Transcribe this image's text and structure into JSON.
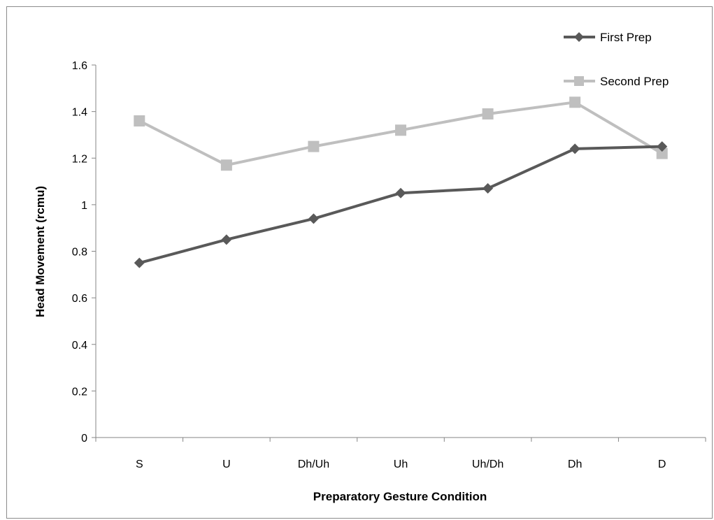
{
  "chart_data": {
    "type": "line",
    "title": "",
    "xlabel": "Preparatory Gesture Condition",
    "ylabel": "Head Movement (rcmu)",
    "categories": [
      "S",
      "U",
      "Dh/Uh",
      "Uh",
      "Uh/Dh",
      "Dh",
      "D"
    ],
    "ylim": [
      0,
      1.6
    ],
    "yticks": [
      "0",
      "0.2",
      "0.4",
      "0.6",
      "0.8",
      "1",
      "1.2",
      "1.4",
      "1.6"
    ],
    "grid": false,
    "legend_position": "top-right",
    "series": [
      {
        "name": "First Prep",
        "marker": "diamond",
        "color": "#595959",
        "values": [
          0.75,
          0.85,
          0.94,
          1.05,
          1.07,
          1.24,
          1.25
        ]
      },
      {
        "name": "Second Prep",
        "marker": "square",
        "color": "#bfbfbf",
        "values": [
          1.36,
          1.17,
          1.25,
          1.32,
          1.39,
          1.44,
          1.22
        ]
      }
    ]
  }
}
